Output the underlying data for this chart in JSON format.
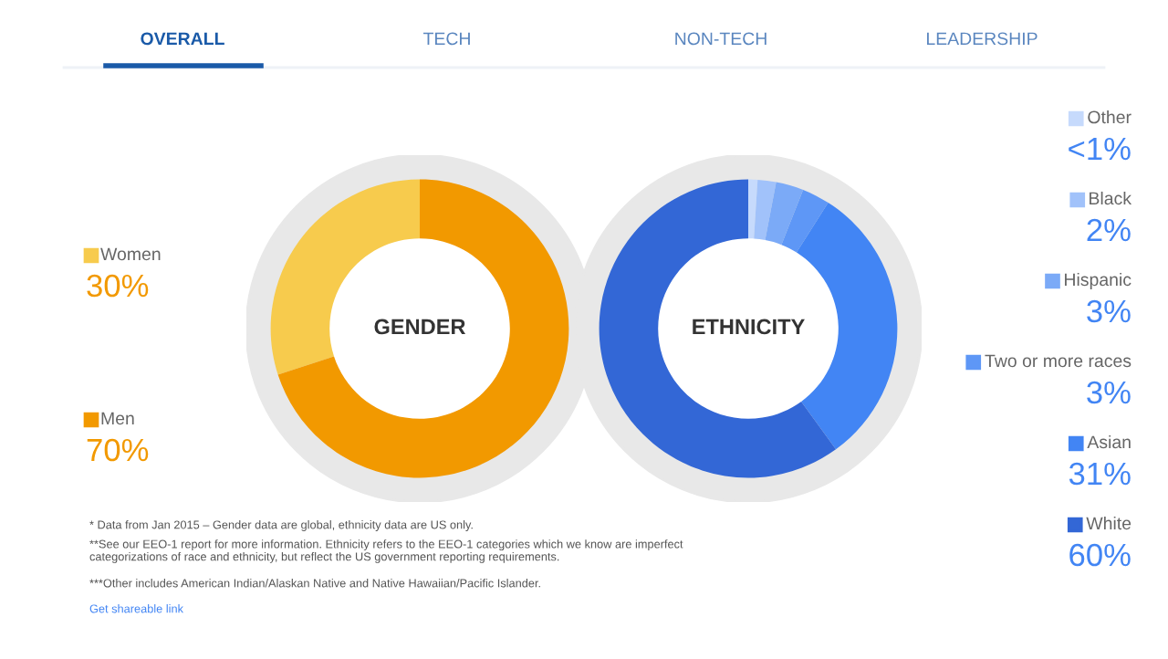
{
  "chart_data": [
    {
      "type": "donut",
      "title": "GENDER",
      "categories": [
        "Women",
        "Men"
      ],
      "values": [
        30,
        70
      ],
      "colors": [
        "#f7cb4d",
        "#f29900"
      ],
      "legend": "left",
      "value_labels": [
        "30%",
        "70%"
      ],
      "annotations": [
        "OVERALL",
        "TECH",
        "NON-TECH",
        "LEADERSHIP",
        "* Data from Jan 2015 – Gender data are global, ethnicity data are US only.",
        "**See our EEO-1 report for more information. Ethnicity refers to the EEO-1 categories which we know are imperfect categorizations of race and ethnicity, but reflect the US government reporting requirements.",
        "***Other includes American Indian/Alaskan Native and Native Hawaiian/Pacific Islander.",
        "Get shareable link"
      ]
    },
    {
      "type": "donut",
      "title": "ETHNICITY",
      "categories": [
        "Other",
        "Black",
        "Hispanic",
        "Two or more races",
        "Asian",
        "White"
      ],
      "values": [
        1,
        2,
        3,
        3,
        31,
        60
      ],
      "colors": [
        "#c6dafc",
        "#a1c2fa",
        "#7baaf7",
        "#5e97f6",
        "#4285f4",
        "#3367d6"
      ],
      "legend": "right",
      "value_labels": [
        "<1%",
        "2%",
        "3%",
        "3%",
        "31%",
        "60%"
      ]
    }
  ]
}
